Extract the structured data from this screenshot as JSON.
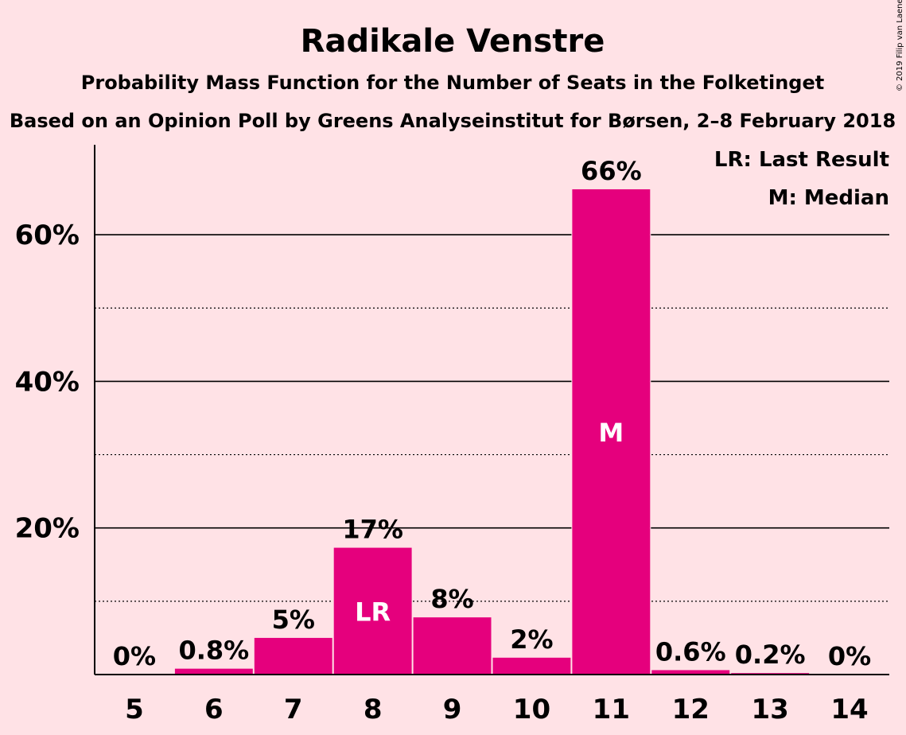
{
  "chart_data": {
    "type": "bar",
    "title": "Radikale Venstre",
    "subtitle": "Probability Mass Function for the Number of Seats in the Folketinget",
    "subtitle2": "Based on an Opinion Poll by Greens Analyseinstitut for Børsen, 2–8 February 2018",
    "copyright": "© 2019 Filip van Laenen",
    "categories": [
      "5",
      "6",
      "7",
      "8",
      "9",
      "10",
      "11",
      "12",
      "13",
      "14"
    ],
    "values": [
      0,
      0.8,
      5,
      17.3,
      7.8,
      2.3,
      66.2,
      0.6,
      0.2,
      0
    ],
    "data_labels": [
      "0%",
      "0.8%",
      "5%",
      "17%",
      "8%",
      "2%",
      "66%",
      "0.6%",
      "0.2%",
      "0%"
    ],
    "bar_annotations": [
      {
        "index": 3,
        "text": "LR"
      },
      {
        "index": 6,
        "text": "M"
      }
    ],
    "ylim": [
      0,
      72
    ],
    "yticks": [
      {
        "value": 20,
        "label": "20%"
      },
      {
        "value": 40,
        "label": "40%"
      },
      {
        "value": 60,
        "label": "60%"
      }
    ],
    "minor_gridlines": [
      10,
      30,
      50
    ],
    "grid": true,
    "legend_items": [
      "LR: Last Result",
      "M: Median"
    ],
    "legend_position": "top-right",
    "bar_color": "#E5007D",
    "background_color": "#FFE2E6"
  }
}
